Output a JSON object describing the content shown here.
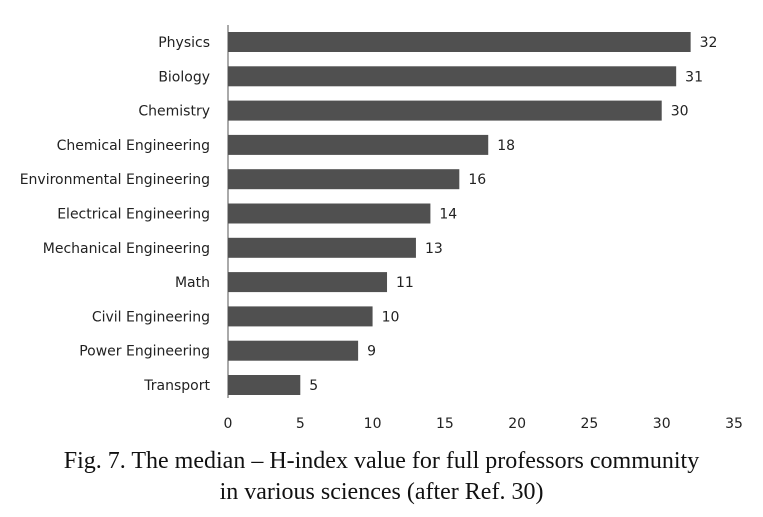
{
  "chart_data": {
    "type": "bar",
    "orientation": "horizontal",
    "categories": [
      "Physics",
      "Biology",
      "Chemistry",
      "Chemical Engineering",
      "Environmental Engineering",
      "Electrical Engineering",
      "Mechanical Engineering",
      "Math",
      "Civil Engineering",
      "Power Engineering",
      "Transport"
    ],
    "values": [
      32,
      31,
      30,
      18,
      16,
      14,
      13,
      11,
      10,
      9,
      5
    ],
    "xlim": [
      0,
      35
    ],
    "xticks": [
      0,
      5,
      10,
      15,
      20,
      25,
      30,
      35
    ],
    "bar_color": "#505050",
    "grid": false,
    "data_labels": true
  },
  "caption": {
    "line1": "Fig. 7. The median – H-index value for full professors community",
    "line2": "in various sciences (after Ref. 30)"
  }
}
